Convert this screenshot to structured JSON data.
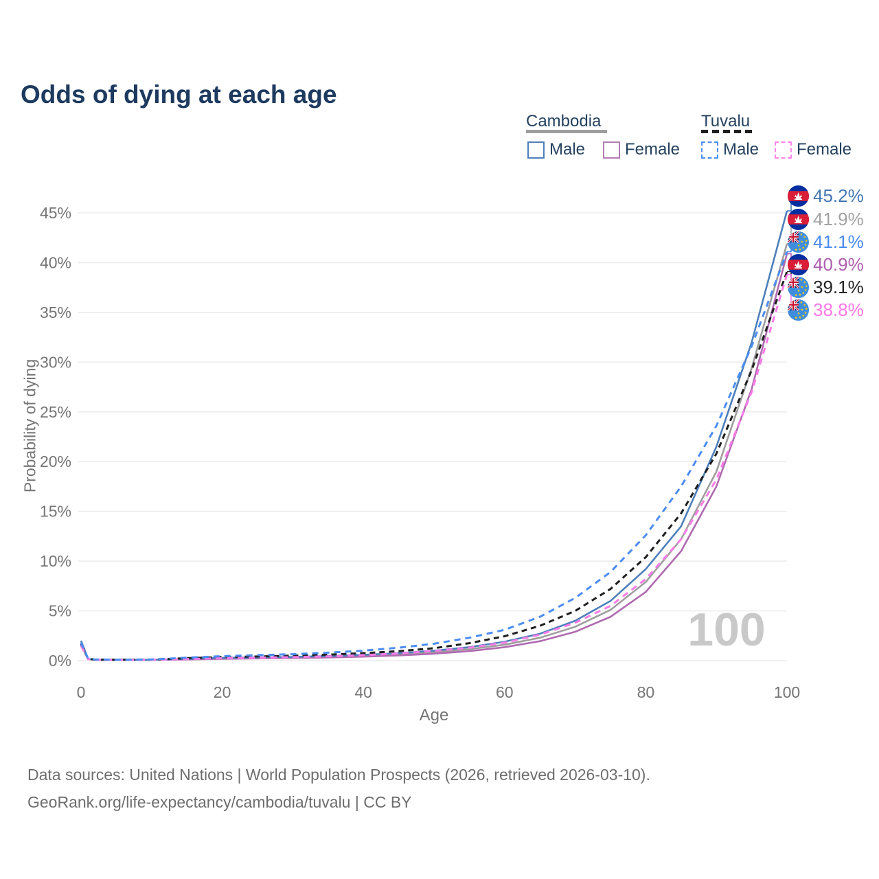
{
  "title": "Odds of dying at each age",
  "legend": {
    "groups": [
      {
        "country": "Cambodia",
        "line_style": "solid",
        "line_color": "#9e9e9e",
        "items": [
          {
            "label": "Male",
            "color": "#4d7fba",
            "style": "solid"
          },
          {
            "label": "Female",
            "color": "#b27cb5",
            "style": "solid"
          }
        ]
      },
      {
        "country": "Tuvalu",
        "line_style": "dashed",
        "line_color": "#1f1f1f",
        "items": [
          {
            "label": "Male",
            "color": "#4c8df2",
            "style": "dashed"
          },
          {
            "label": "Female",
            "color": "#ff85e8",
            "style": "dashed"
          }
        ]
      }
    ]
  },
  "chart_data": {
    "type": "line",
    "title": "Odds of dying at each age",
    "xlabel": "Age",
    "ylabel": "Probability of dying",
    "xlim": [
      0,
      100
    ],
    "ylim": [
      0,
      45
    ],
    "grid": "horizontal",
    "x_ticks": [
      0,
      20,
      40,
      60,
      80,
      100
    ],
    "y_tick_labels": [
      "0%",
      "5%",
      "10%",
      "15%",
      "20%",
      "25%",
      "30%",
      "35%",
      "40%",
      "45%"
    ],
    "x": [
      0,
      1,
      2,
      5,
      10,
      15,
      20,
      25,
      30,
      35,
      40,
      45,
      50,
      55,
      60,
      65,
      70,
      75,
      80,
      85,
      90,
      95,
      100
    ],
    "series": [
      {
        "name": "Cambodia Both",
        "country": "Cambodia",
        "sex": "Both",
        "style": "solid",
        "color": "#9e9e9e",
        "values": [
          1.85,
          0.17,
          0.09,
          0.07,
          0.08,
          0.15,
          0.23,
          0.27,
          0.32,
          0.39,
          0.49,
          0.63,
          0.85,
          1.15,
          1.6,
          2.3,
          3.4,
          5.1,
          7.9,
          12.2,
          19.0,
          29.4,
          41.9
        ]
      },
      {
        "name": "Cambodia Female",
        "country": "Cambodia",
        "sex": "Female",
        "style": "solid",
        "color": "#b06ab0",
        "values": [
          1.7,
          0.15,
          0.08,
          0.06,
          0.07,
          0.12,
          0.18,
          0.22,
          0.26,
          0.32,
          0.4,
          0.52,
          0.7,
          0.95,
          1.35,
          1.95,
          2.9,
          4.4,
          6.9,
          11.0,
          17.5,
          27.3,
          40.9
        ]
      },
      {
        "name": "Cambodia Male",
        "country": "Cambodia",
        "sex": "Male",
        "style": "solid",
        "color": "#4d7fba",
        "values": [
          2.0,
          0.18,
          0.1,
          0.08,
          0.09,
          0.18,
          0.28,
          0.33,
          0.38,
          0.46,
          0.58,
          0.75,
          1.0,
          1.35,
          1.9,
          2.7,
          4.0,
          6.0,
          9.2,
          13.5,
          21.5,
          32.0,
          45.2
        ]
      },
      {
        "name": "Tuvalu Both",
        "country": "Tuvalu",
        "sex": "Both",
        "style": "dashed",
        "color": "#1f1f1f",
        "values": [
          1.65,
          0.18,
          0.1,
          0.09,
          0.1,
          0.25,
          0.35,
          0.42,
          0.5,
          0.6,
          0.75,
          0.95,
          1.25,
          1.75,
          2.45,
          3.5,
          5.0,
          7.2,
          10.4,
          14.8,
          20.8,
          29.2,
          39.1
        ]
      },
      {
        "name": "Tuvalu Female",
        "country": "Tuvalu",
        "sex": "Female",
        "style": "dashed",
        "color": "#fb7ce8",
        "values": [
          1.5,
          0.15,
          0.09,
          0.07,
          0.08,
          0.16,
          0.24,
          0.29,
          0.35,
          0.43,
          0.55,
          0.72,
          0.97,
          1.3,
          1.8,
          2.6,
          3.8,
          5.5,
          8.2,
          12.2,
          18.2,
          27.0,
          38.8
        ]
      },
      {
        "name": "Tuvalu Male",
        "country": "Tuvalu",
        "sex": "Male",
        "style": "dashed",
        "color": "#4c8df2",
        "values": [
          1.8,
          0.2,
          0.12,
          0.1,
          0.12,
          0.3,
          0.45,
          0.55,
          0.65,
          0.8,
          1.0,
          1.3,
          1.7,
          2.3,
          3.1,
          4.4,
          6.3,
          8.9,
          12.6,
          17.5,
          23.6,
          31.6,
          41.1
        ]
      }
    ]
  },
  "end_labels": [
    {
      "series": "Cambodia Male",
      "value": "45.2%",
      "color": "#4577b5",
      "flag": "cambodia"
    },
    {
      "series": "Cambodia Both",
      "value": "41.9%",
      "color": "#a3a3a3",
      "flag": "cambodia"
    },
    {
      "series": "Tuvalu Male",
      "value": "41.1%",
      "color": "#4a8cf2",
      "flag": "tuvalu"
    },
    {
      "series": "Cambodia Female",
      "value": "40.9%",
      "color": "#ae5fae",
      "flag": "cambodia"
    },
    {
      "series": "Tuvalu Both",
      "value": "39.1%",
      "color": "#222222",
      "flag": "tuvalu"
    },
    {
      "series": "Tuvalu Female",
      "value": "38.8%",
      "color": "#fb79e6",
      "flag": "tuvalu"
    }
  ],
  "watermark": "100",
  "footer": {
    "line1": "Data sources: United Nations | World Population Prospects (2026, retrieved 2026-03-10).",
    "line2": "GeoRank.org/life-expectancy/cambodia/tuvalu | CC BY"
  },
  "colors": {
    "title": "#1d3a5f",
    "axis_text": "#757575",
    "gridline": "#ececec",
    "watermark": "#c9c9c9",
    "footer_text": "#6e6e6e"
  }
}
